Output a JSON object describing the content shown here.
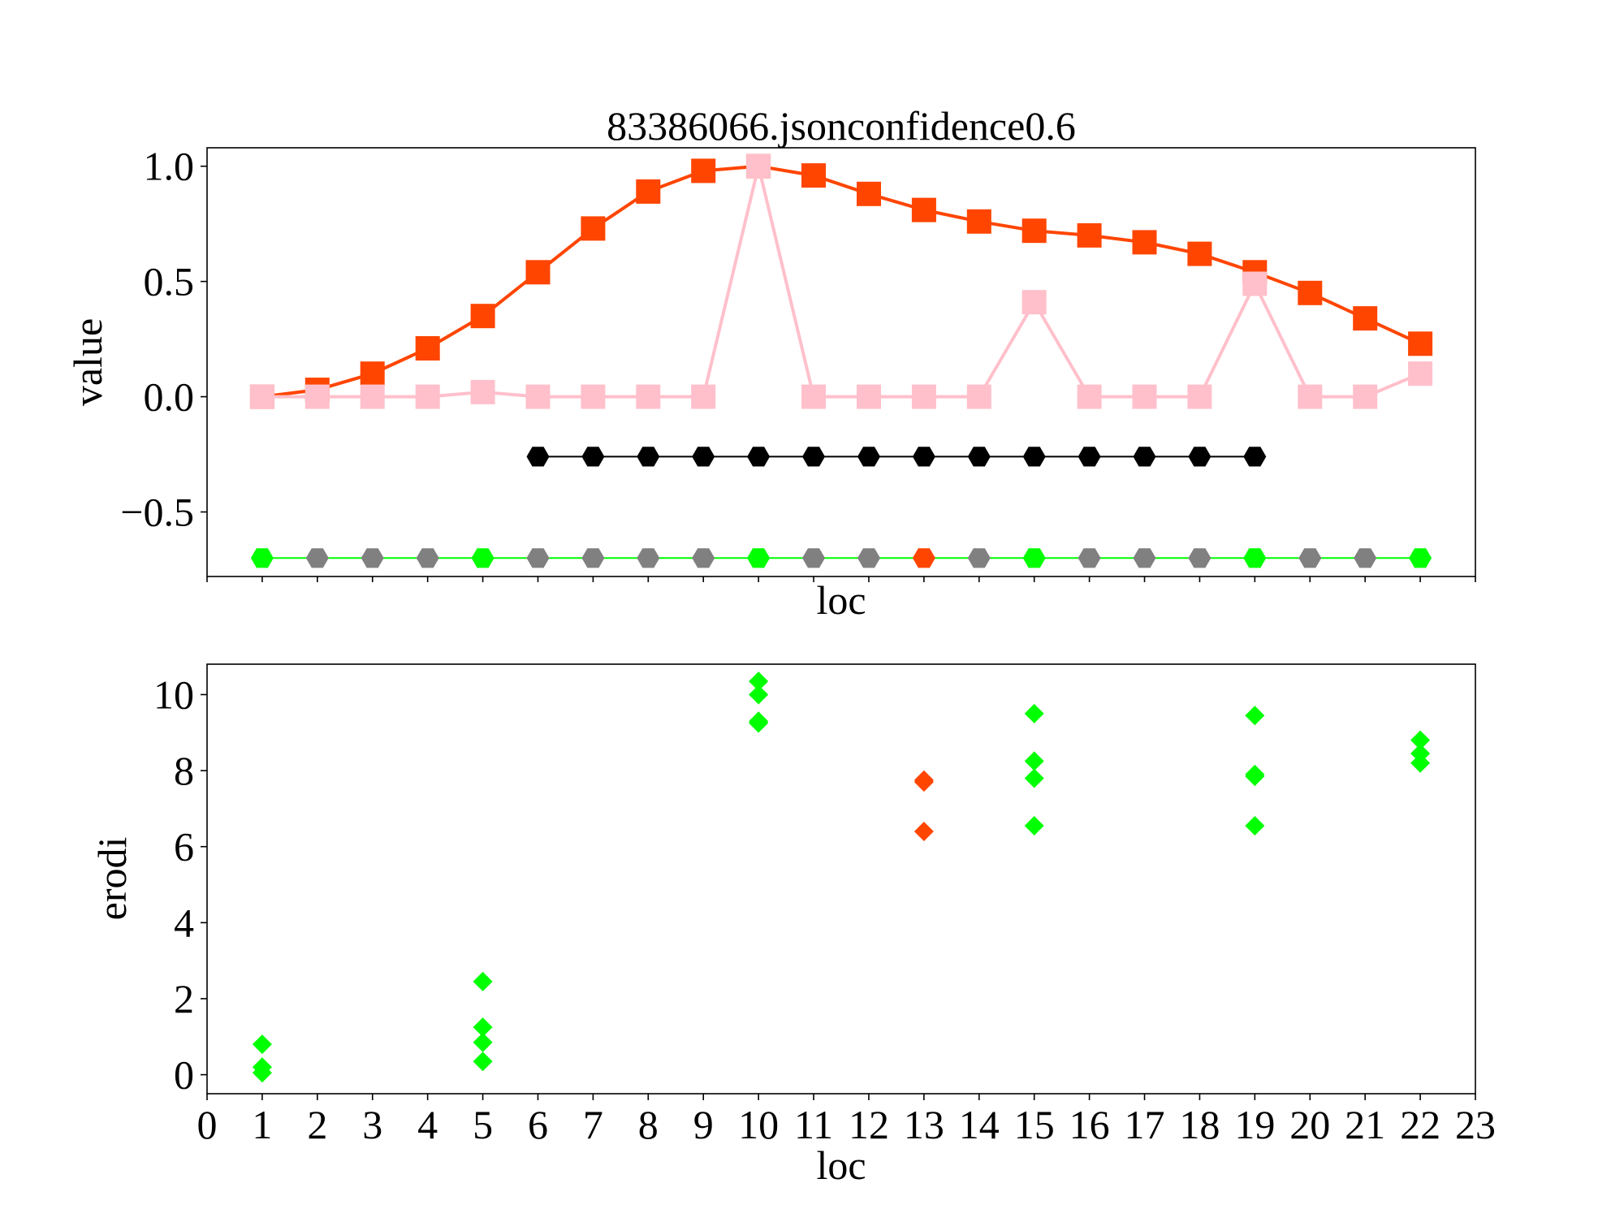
{
  "chart_data": [
    {
      "type": "line",
      "title": "83386066.jsonconfidence0.6",
      "xlabel": "loc",
      "ylabel": "value",
      "xlim": [
        0,
        23
      ],
      "ylim": [
        -0.78,
        1.08
      ],
      "yticks": [
        -0.5,
        0.0,
        0.5,
        1.0
      ],
      "ytick_labels": [
        "−0.5",
        "0.0",
        "0.5",
        "1.0"
      ],
      "series": [
        {
          "color": "#ff4500",
          "marker": "square",
          "x": [
            1,
            2,
            3,
            4,
            5,
            6,
            7,
            8,
            9,
            10,
            11,
            12,
            13,
            14,
            15,
            16,
            17,
            18,
            19,
            20,
            21,
            22
          ],
          "y": [
            0.0,
            0.03,
            0.1,
            0.21,
            0.35,
            0.54,
            0.73,
            0.89,
            0.98,
            1.0,
            0.96,
            0.88,
            0.81,
            0.76,
            0.72,
            0.7,
            0.67,
            0.62,
            0.54,
            0.45,
            0.34,
            0.23
          ]
        },
        {
          "color": "#ffc0cb",
          "marker": "square",
          "x": [
            1,
            2,
            3,
            4,
            5,
            6,
            7,
            8,
            9,
            10,
            11,
            12,
            13,
            14,
            15,
            16,
            17,
            18,
            19,
            20,
            21,
            22
          ],
          "y": [
            0.0,
            0.0,
            0.0,
            0.0,
            0.02,
            0.0,
            0.0,
            0.0,
            0.0,
            1.0,
            0.0,
            0.0,
            0.0,
            0.0,
            0.41,
            0.0,
            0.0,
            0.0,
            0.49,
            0.0,
            0.0,
            0.1
          ]
        },
        {
          "color": "#000000",
          "marker": "hexagon",
          "x": [
            6,
            7,
            8,
            9,
            10,
            11,
            12,
            13,
            14,
            15,
            16,
            17,
            18,
            19
          ],
          "y": [
            -0.26,
            -0.26,
            -0.26,
            -0.26,
            -0.26,
            -0.26,
            -0.26,
            -0.26,
            -0.26,
            -0.26,
            -0.26,
            -0.26,
            -0.26,
            -0.26
          ]
        },
        {
          "color": "#00ff00",
          "marker": "hexagon",
          "x": [
            1,
            2,
            3,
            4,
            5,
            6,
            7,
            8,
            9,
            10,
            11,
            12,
            13,
            14,
            15,
            16,
            17,
            18,
            19,
            20,
            21,
            22
          ],
          "y": [
            -0.7,
            -0.7,
            -0.7,
            -0.7,
            -0.7,
            -0.7,
            -0.7,
            -0.7,
            -0.7,
            -0.7,
            -0.7,
            -0.7,
            -0.7,
            -0.7,
            -0.7,
            -0.7,
            -0.7,
            -0.7,
            -0.7,
            -0.7,
            -0.7,
            -0.7
          ],
          "point_colors": [
            "#00ff00",
            "#808080",
            "#808080",
            "#808080",
            "#00ff00",
            "#808080",
            "#808080",
            "#808080",
            "#808080",
            "#00ff00",
            "#808080",
            "#808080",
            "#ff4500",
            "#808080",
            "#00ff00",
            "#808080",
            "#808080",
            "#808080",
            "#00ff00",
            "#808080",
            "#808080",
            "#00ff00"
          ]
        }
      ]
    },
    {
      "type": "scatter",
      "title": "",
      "xlabel": "loc",
      "ylabel": "erodi",
      "xlim": [
        0,
        23
      ],
      "ylim": [
        -0.5,
        10.8
      ],
      "xticks": [
        0,
        1,
        2,
        3,
        4,
        5,
        6,
        7,
        8,
        9,
        10,
        11,
        12,
        13,
        14,
        15,
        16,
        17,
        18,
        19,
        20,
        21,
        22,
        23
      ],
      "xtick_labels": [
        "0",
        "1",
        "2",
        "3",
        "4",
        "5",
        "6",
        "7",
        "8",
        "9",
        "10",
        "11",
        "12",
        "13",
        "14",
        "15",
        "16",
        "17",
        "18",
        "19",
        "20",
        "21",
        "22",
        "23"
      ],
      "yticks": [
        0,
        2,
        4,
        6,
        8,
        10
      ],
      "ytick_labels": [
        "0",
        "2",
        "4",
        "6",
        "8",
        "10"
      ],
      "series": [
        {
          "color": "#00ff00",
          "marker": "diamond",
          "x": [
            1,
            1,
            1,
            5,
            5,
            5,
            5,
            10,
            10,
            10,
            10,
            15,
            15,
            15,
            15,
            19,
            19,
            19,
            19,
            22,
            22,
            22
          ],
          "y": [
            0.8,
            0.2,
            0.05,
            2.45,
            1.25,
            0.85,
            0.35,
            10.35,
            10.0,
            9.3,
            9.25,
            9.5,
            8.25,
            7.8,
            6.55,
            9.45,
            7.9,
            7.85,
            6.55,
            8.8,
            8.45,
            8.2
          ]
        },
        {
          "color": "#ff4500",
          "marker": "diamond",
          "x": [
            13,
            13,
            13
          ],
          "y": [
            7.75,
            7.7,
            6.4
          ]
        }
      ]
    }
  ]
}
